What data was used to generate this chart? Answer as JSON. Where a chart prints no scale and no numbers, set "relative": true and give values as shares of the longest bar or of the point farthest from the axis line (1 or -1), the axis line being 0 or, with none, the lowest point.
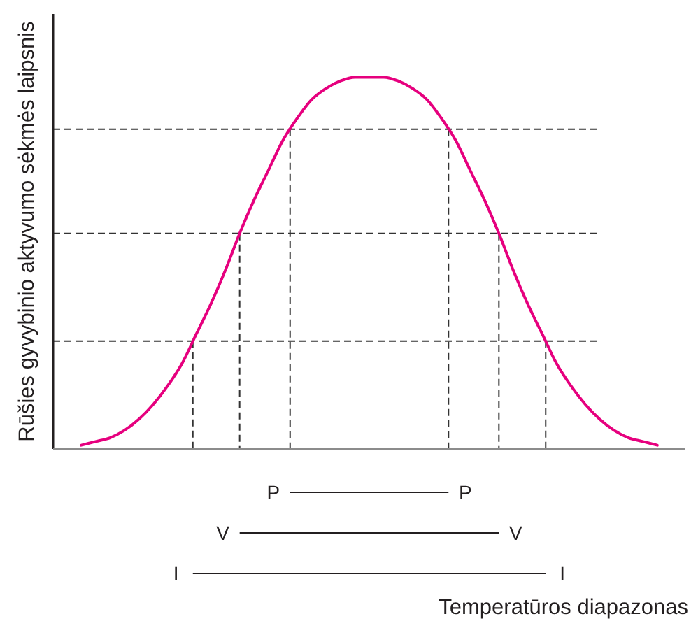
{
  "chart_data": {
    "type": "line",
    "relative": true,
    "ylabel": "Rūšies gyvybinio aktyvumo sėkmės laipsnis",
    "categories": [
      null,
      null,
      null,
      null,
      null,
      null,
      null,
      null,
      null,
      null,
      null,
      null,
      null,
      null,
      null,
      null,
      null,
      null,
      null,
      null,
      null,
      null,
      null,
      null,
      null,
      null,
      null,
      null,
      null,
      null,
      null,
      null,
      null,
      null,
      null,
      null,
      null,
      null,
      null,
      null,
      null
    ],
    "values": [
      0.01,
      0.02,
      0.03,
      0.05,
      0.08,
      0.12,
      0.17,
      0.23,
      0.31,
      0.39,
      0.48,
      0.58,
      0.67,
      0.75,
      0.83,
      0.89,
      0.94,
      0.97,
      0.99,
      1,
      1,
      1,
      0.99,
      0.97,
      0.94,
      0.89,
      0.83,
      0.75,
      0.67,
      0.58,
      0.48,
      0.39,
      0.31,
      0.23,
      0.17,
      0.12,
      0.08,
      0.05,
      0.03,
      0.02,
      0.01
    ],
    "color": "#e6007e",
    "ref_lines": [
      {
        "axis": "y",
        "value": 0.86,
        "line_style": "dashed",
        "color": "#333333"
      },
      {
        "axis": "y",
        "value": 0.58,
        "line_style": "dashed",
        "color": "#333333"
      },
      {
        "axis": "y",
        "value": 0.29,
        "line_style": "dashed",
        "color": "#333333"
      }
    ],
    "annotations": [
      "P",
      "P",
      "V",
      "V",
      "I",
      "I",
      "Temperatūros diapazonas"
    ]
  }
}
